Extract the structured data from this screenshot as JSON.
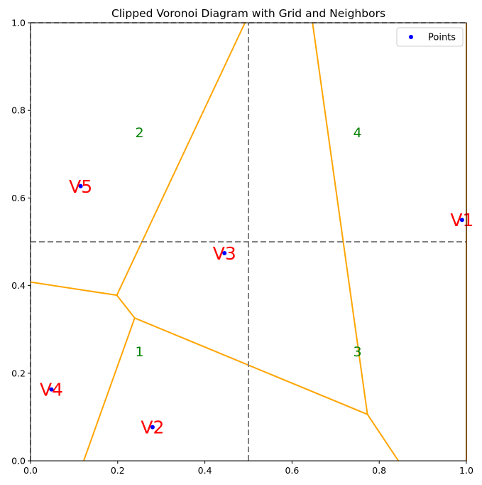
{
  "chart_data": {
    "type": "scatter",
    "title": "Clipped Voronoi Diagram with Grid and Neighbors",
    "xlim": [
      0,
      1
    ],
    "ylim": [
      0,
      1
    ],
    "xticks": [
      "0.0",
      "0.2",
      "0.4",
      "0.6",
      "0.8",
      "1.0"
    ],
    "yticks": [
      "0.0",
      "0.2",
      "0.4",
      "0.6",
      "0.8",
      "1.0"
    ],
    "legend": {
      "position": "top-right",
      "entries": [
        {
          "label": "Points",
          "color": "#0000ff"
        }
      ]
    },
    "points": [
      {
        "label": "V1",
        "x": 0.99,
        "y": 0.55
      },
      {
        "label": "V2",
        "x": 0.28,
        "y": 0.077
      },
      {
        "label": "V3",
        "x": 0.445,
        "y": 0.474
      },
      {
        "label": "V4",
        "x": 0.048,
        "y": 0.163
      },
      {
        "label": "V5",
        "x": 0.115,
        "y": 0.627
      }
    ],
    "voronoi_edges": [
      [
        [
          0.198,
          0.378
        ],
        [
          0.492,
          1.0
        ]
      ],
      [
        [
          0.198,
          0.378
        ],
        [
          0.0,
          0.408
        ]
      ],
      [
        [
          0.198,
          0.378
        ],
        [
          0.239,
          0.326
        ]
      ],
      [
        [
          0.239,
          0.326
        ],
        [
          0.122,
          0.0
        ]
      ],
      [
        [
          0.239,
          0.326
        ],
        [
          0.773,
          0.106
        ]
      ],
      [
        [
          0.773,
          0.106
        ],
        [
          0.844,
          0.0
        ]
      ],
      [
        [
          0.773,
          0.106
        ],
        [
          0.647,
          1.0
        ]
      ]
    ],
    "grid_lines": {
      "x": [
        0.5
      ],
      "y": [
        0.5
      ]
    },
    "neighbor_labels": [
      {
        "text": "1",
        "x": 0.25,
        "y": 0.25
      },
      {
        "text": "2",
        "x": 0.25,
        "y": 0.75
      },
      {
        "text": "3",
        "x": 0.75,
        "y": 0.25
      },
      {
        "text": "4",
        "x": 0.75,
        "y": 0.75
      }
    ],
    "colors": {
      "edges": "#ffa500",
      "points": "#0000ff",
      "labels": "#ff0000",
      "neighbors": "#008000",
      "grid": "#808080"
    }
  }
}
